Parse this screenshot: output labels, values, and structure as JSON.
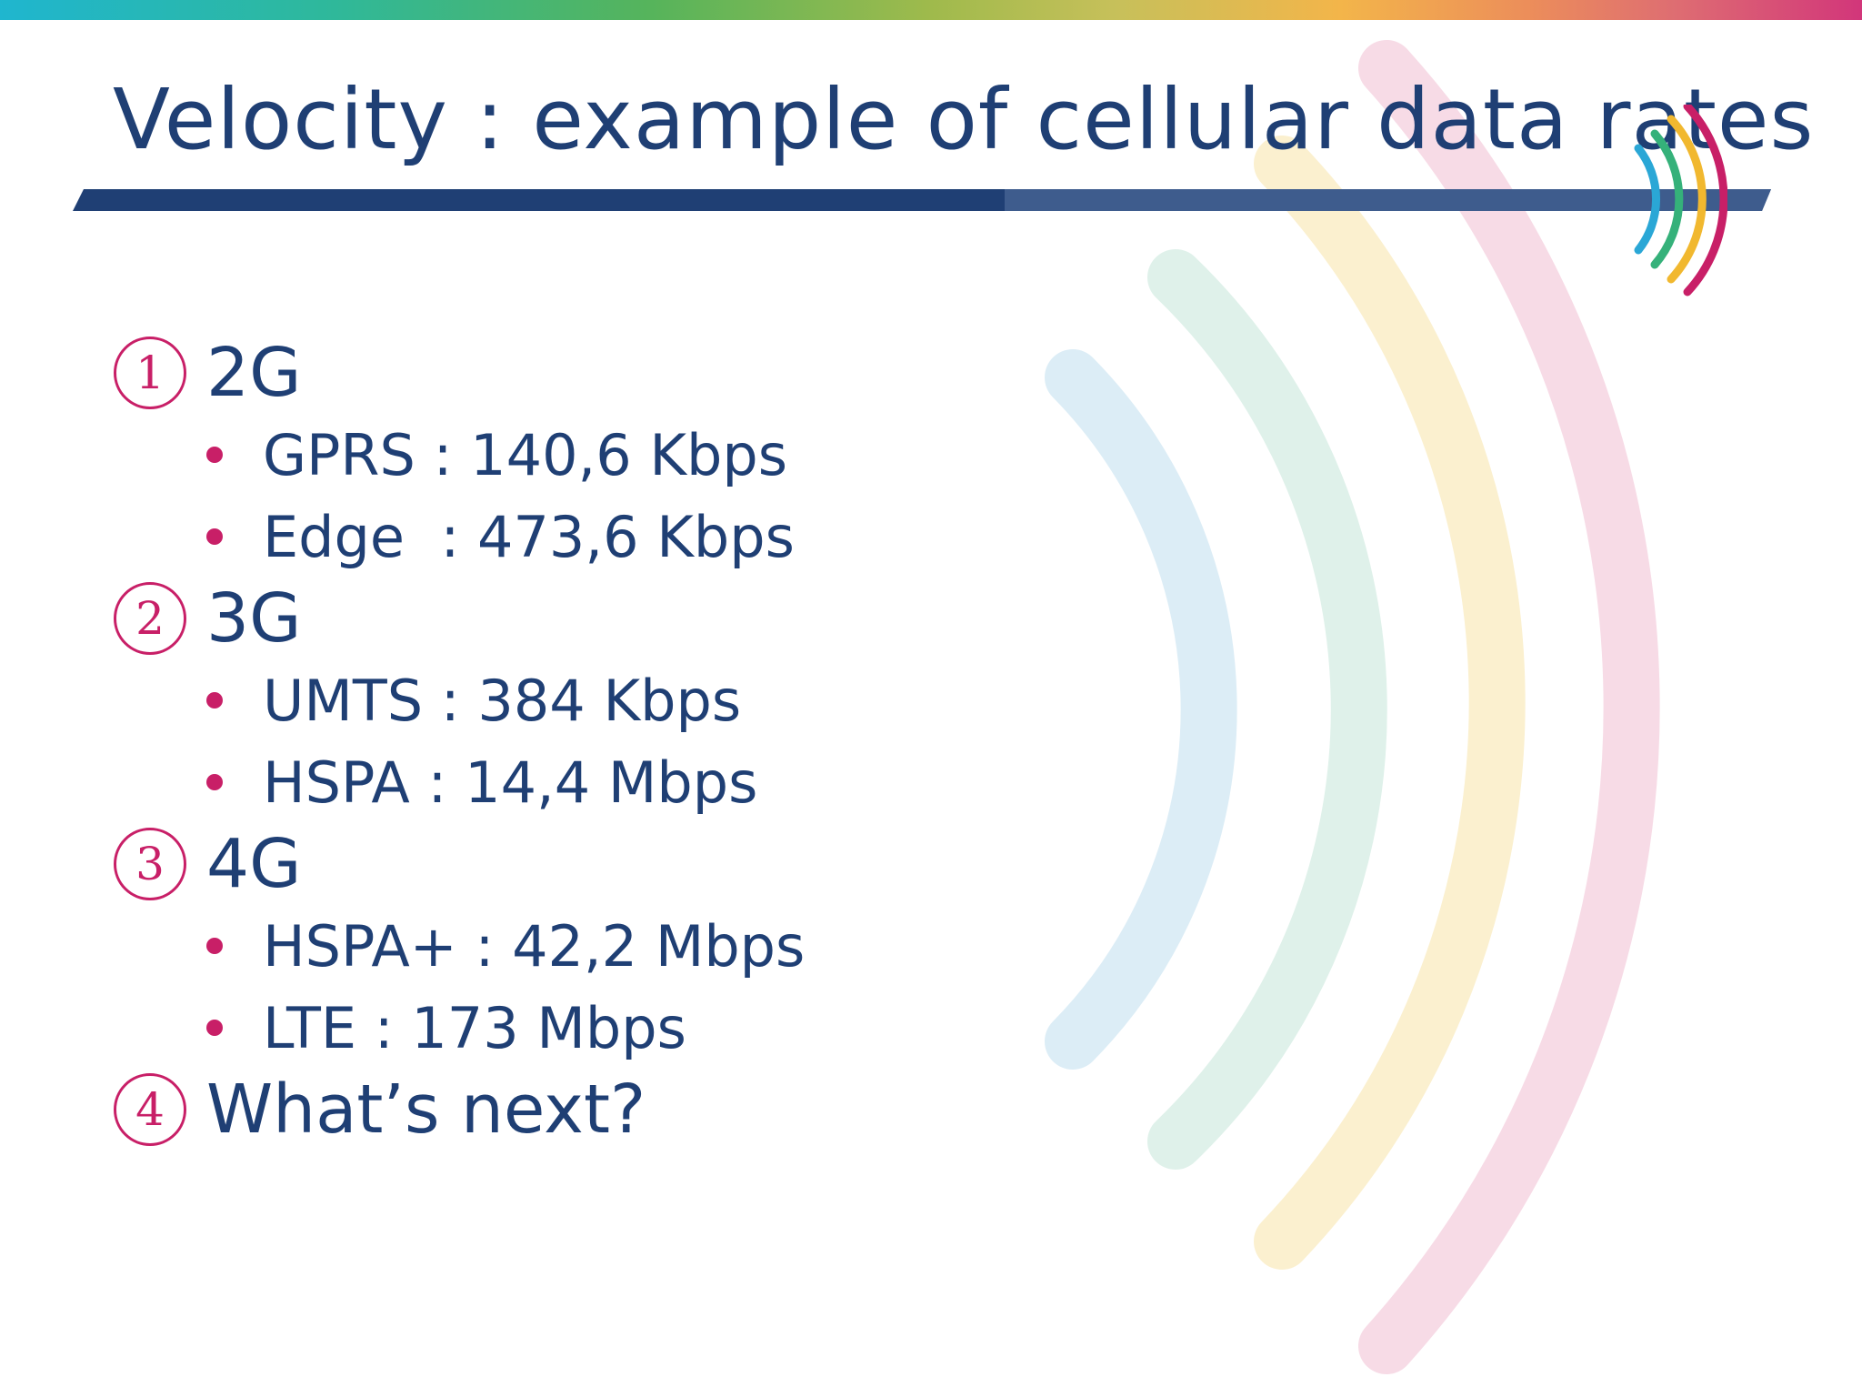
{
  "slide": {
    "title": "Velocity : example of cellular data rates",
    "items": [
      {
        "number": "1",
        "label": "2G",
        "subitems": [
          "GPRS : 140,6 Kbps",
          "Edge  : 473,6 Kbps"
        ]
      },
      {
        "number": "2",
        "label": "3G",
        "subitems": [
          "UMTS : 384 Kbps",
          "HSPA : 14,4 Mbps"
        ]
      },
      {
        "number": "3",
        "label": "4G",
        "subitems": [
          "HSPA+ : 42,2 Mbps",
          "LTE : 173 Mbps"
        ]
      },
      {
        "number": "4",
        "label": "What’s next?",
        "subitems": []
      }
    ]
  },
  "colors": {
    "title_text": "#1f3f74",
    "accent_magenta": "#c81f67",
    "rule_navy": "#1f3f74",
    "wave_blue": "#dcedf6",
    "wave_green": "#dff1ea",
    "wave_yellow": "#fbf0cf",
    "wave_pink": "#f7dbe6"
  },
  "icons": {
    "logo": "signal-waves-logo-icon",
    "background": "signal-waves-background-icon"
  }
}
